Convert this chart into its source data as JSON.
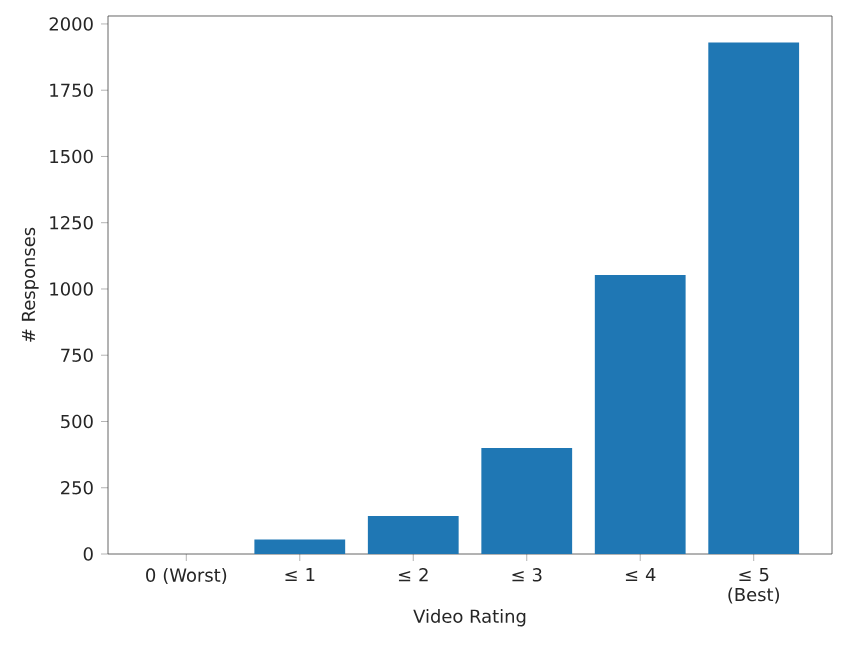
{
  "chart_data": {
    "type": "bar",
    "xlabel": "Video Rating",
    "ylabel": "# Responses",
    "categories": [
      "0 (Worst)",
      "≤ 1",
      "≤ 2",
      "≤ 3",
      "≤ 4",
      "≤ 5 (Best)"
    ],
    "values": [
      0,
      55,
      143,
      400,
      1053,
      1930
    ],
    "color": "#1f77b4",
    "ylim": [
      0,
      2030
    ],
    "yticks": [
      0,
      250,
      500,
      750,
      1000,
      1250,
      1500,
      1750,
      2000
    ]
  }
}
